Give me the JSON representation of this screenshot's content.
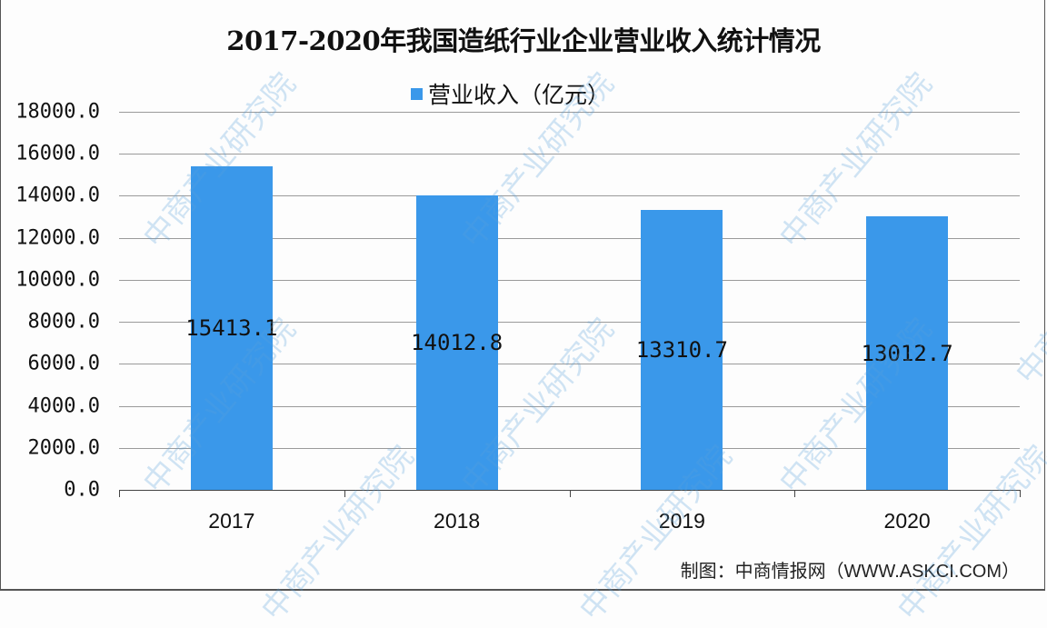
{
  "chart_data": {
    "type": "bar",
    "title": "2017-2020年我国造纸行业企业营业收入统计情况",
    "categories": [
      "2017",
      "2018",
      "2019",
      "2020"
    ],
    "series": [
      {
        "name": "营业收入（亿元）",
        "values": [
          15413.1,
          14012.8,
          13310.7,
          13012.7
        ],
        "color": "#3a98ea"
      }
    ],
    "data_labels": [
      "15413.1",
      "14012.8",
      "13310.7",
      "13012.7"
    ],
    "xlabel": "",
    "ylabel": "",
    "ylim": [
      0,
      18000
    ],
    "yticks": [
      "0.0",
      "2000.0",
      "4000.0",
      "6000.0",
      "8000.0",
      "10000.0",
      "12000.0",
      "14000.0",
      "16000.0",
      "18000.0"
    ],
    "grid": true,
    "legend_position": "top"
  },
  "legend": {
    "label": "营业收入（亿元）",
    "color": "#3a98ea"
  },
  "source": "制图：中商情报网（WWW.ASKCI.COM）",
  "watermark": "中商产业研究院"
}
